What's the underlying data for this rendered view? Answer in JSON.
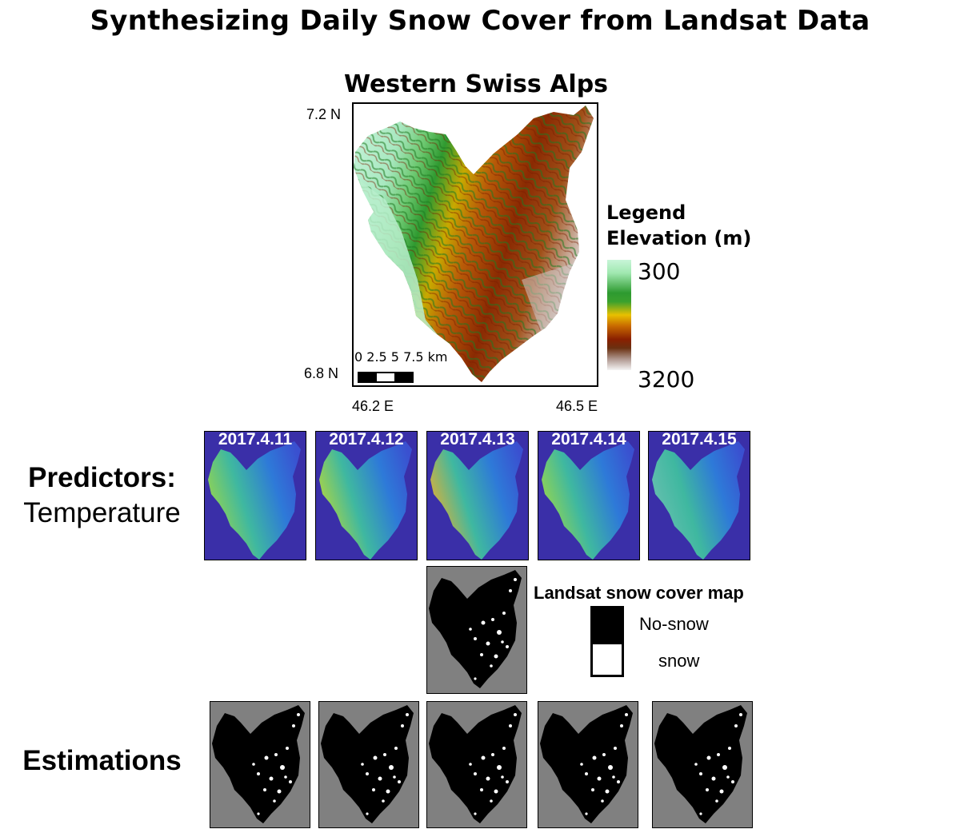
{
  "title": "Synthesizing Daily Snow Cover from Landsat Data",
  "map": {
    "title": "Western Swiss Alps",
    "lat_top": "7.2 N",
    "lat_bottom": "6.8 N",
    "lon_left": "46.2 E",
    "lon_right": "46.5 E",
    "scale_label": "0 2.5 5 7.5 km",
    "legend": {
      "title_line1": "Legend",
      "title_line2": "Elevation (m)",
      "min": "300",
      "max": "3200",
      "colors": [
        "#c8f5d8",
        "#2e9a30",
        "#e8c000",
        "#8a2000",
        "#f4f4f4"
      ]
    }
  },
  "predictors": {
    "title": "Predictors:",
    "subtitle": "Temperature",
    "dates": [
      "2017.4.11",
      "2017.4.12",
      "2017.4.13",
      "2017.4.14",
      "2017.4.15"
    ],
    "background_color": "#3a2fa8"
  },
  "landsat": {
    "title": "Landsat snow cover map",
    "legend_nosnow": "No-snow",
    "legend_snow": "snow",
    "background_color": "#808080"
  },
  "estimations": {
    "title": "Estimations",
    "count": 5
  }
}
